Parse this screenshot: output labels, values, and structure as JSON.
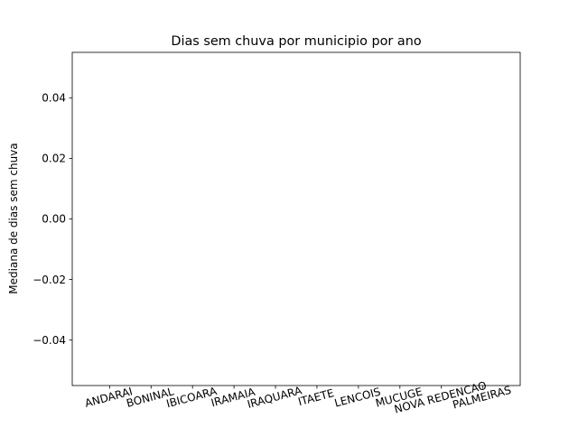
{
  "chart_data": {
    "type": "bar",
    "title": "Dias sem chuva por municipio por ano",
    "xlabel": "",
    "ylabel": "Mediana de dias sem chuva",
    "categories": [
      "ANDARAI",
      "BONINAL",
      "IBICOARA",
      "IRAMAIA",
      "IRAQUARA",
      "ITAETE",
      "LENCOIS",
      "MUCUGE",
      "NOVA REDENCAO",
      "PALMEIRAS"
    ],
    "values": [
      0,
      0,
      0,
      0,
      0,
      0,
      0,
      0,
      0,
      0
    ],
    "ylim": [
      -0.055,
      0.055
    ],
    "yticks": [
      -0.04,
      -0.02,
      0.0,
      0.02,
      0.04
    ],
    "ytick_labels": [
      "−0.04",
      "−0.02",
      "0.00",
      "0.02",
      "0.04"
    ],
    "grid": false,
    "x_tick_rotation_deg": -15
  }
}
